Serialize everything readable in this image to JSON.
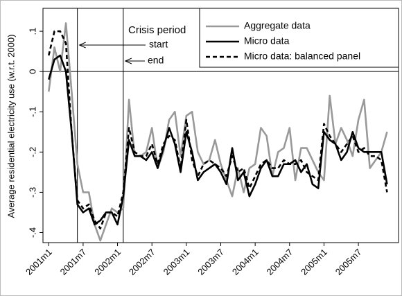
{
  "chart_data": {
    "type": "line",
    "y_label": "Average residential electricity use (w.r.t. 2000)",
    "annotations": {
      "crisis": "Crisis period",
      "start": "start",
      "end": "end"
    },
    "vlines": [
      5,
      13
    ],
    "yline": 0,
    "x": [
      0,
      1,
      2,
      3,
      4,
      5,
      6,
      7,
      8,
      9,
      10,
      11,
      12,
      13,
      14,
      15,
      16,
      17,
      18,
      19,
      20,
      21,
      22,
      23,
      24,
      25,
      26,
      27,
      28,
      29,
      30,
      31,
      32,
      33,
      34,
      35,
      36,
      37,
      38,
      39,
      40,
      41,
      42,
      43,
      44,
      45,
      46,
      47,
      48,
      49,
      50,
      51,
      52,
      53,
      54,
      55,
      56,
      57,
      58,
      59
    ],
    "xlim": [
      -1,
      61
    ],
    "xticks": [
      {
        "value": 0,
        "label": "2001m1"
      },
      {
        "value": 6,
        "label": "2001m7"
      },
      {
        "value": 12,
        "label": "2002m1"
      },
      {
        "value": 18,
        "label": "2002m7"
      },
      {
        "value": 24,
        "label": "2003m1"
      },
      {
        "value": 30,
        "label": "2003m7"
      },
      {
        "value": 36,
        "label": "2004m1"
      },
      {
        "value": 42,
        "label": "2004m7"
      },
      {
        "value": 48,
        "label": "2005m1"
      },
      {
        "value": 54,
        "label": "2005m7"
      }
    ],
    "ylim": [
      -0.425,
      0.157
    ],
    "yticks": [
      {
        "value": -0.4,
        "label": "-.4"
      },
      {
        "value": -0.3,
        "label": "-.3"
      },
      {
        "value": -0.2,
        "label": "-.2"
      },
      {
        "value": -0.1,
        "label": "-.1"
      },
      0,
      {
        "value": 0.1,
        "label": ".1"
      }
    ],
    "legend": "top-right",
    "series": [
      {
        "name": "Aggregate data",
        "color": "#999999",
        "dash": "none",
        "values": [
          -0.05,
          0.06,
          0.0,
          0.12,
          -0.05,
          -0.23,
          -0.3,
          -0.3,
          -0.38,
          -0.42,
          -0.38,
          -0.34,
          -0.35,
          -0.34,
          -0.07,
          -0.21,
          -0.21,
          -0.2,
          -0.14,
          -0.24,
          -0.2,
          -0.12,
          -0.1,
          -0.21,
          -0.11,
          -0.1,
          -0.2,
          -0.23,
          -0.22,
          -0.17,
          -0.23,
          -0.27,
          -0.31,
          -0.24,
          -0.3,
          -0.24,
          -0.23,
          -0.14,
          -0.16,
          -0.26,
          -0.2,
          -0.19,
          -0.14,
          -0.27,
          -0.19,
          -0.19,
          -0.22,
          -0.25,
          -0.27,
          -0.06,
          -0.18,
          -0.14,
          -0.17,
          -0.21,
          -0.12,
          -0.07,
          -0.24,
          -0.22,
          -0.2,
          -0.15
        ]
      },
      {
        "name": "Micro data",
        "color": "#000000",
        "dash": "none",
        "values": [
          -0.02,
          0.03,
          0.04,
          0.0,
          -0.15,
          -0.33,
          -0.35,
          -0.34,
          -0.38,
          -0.37,
          -0.35,
          -0.35,
          -0.38,
          -0.31,
          -0.17,
          -0.21,
          -0.21,
          -0.22,
          -0.2,
          -0.24,
          -0.19,
          -0.14,
          -0.18,
          -0.25,
          -0.15,
          -0.2,
          -0.27,
          -0.25,
          -0.24,
          -0.23,
          -0.25,
          -0.28,
          -0.19,
          -0.27,
          -0.25,
          -0.31,
          -0.28,
          -0.24,
          -0.22,
          -0.26,
          -0.26,
          -0.23,
          -0.23,
          -0.22,
          -0.25,
          -0.23,
          -0.28,
          -0.29,
          -0.15,
          -0.17,
          -0.18,
          -0.22,
          -0.2,
          -0.15,
          -0.19,
          -0.2,
          -0.2,
          -0.2,
          -0.2,
          -0.28
        ]
      },
      {
        "name": "Micro data: balanced panel",
        "color": "#000000",
        "dash": "6,4",
        "values": [
          0.04,
          0.1,
          0.1,
          0.07,
          -0.15,
          -0.32,
          -0.34,
          -0.33,
          -0.37,
          -0.39,
          -0.35,
          -0.35,
          -0.36,
          -0.3,
          -0.14,
          -0.2,
          -0.21,
          -0.21,
          -0.18,
          -0.23,
          -0.18,
          -0.16,
          -0.17,
          -0.24,
          -0.12,
          -0.22,
          -0.26,
          -0.23,
          -0.22,
          -0.23,
          -0.24,
          -0.26,
          -0.21,
          -0.25,
          -0.24,
          -0.29,
          -0.26,
          -0.23,
          -0.22,
          -0.24,
          -0.24,
          -0.22,
          -0.23,
          -0.23,
          -0.22,
          -0.25,
          -0.26,
          -0.27,
          -0.13,
          -0.16,
          -0.18,
          -0.2,
          -0.18,
          -0.16,
          -0.2,
          -0.19,
          -0.21,
          -0.21,
          -0.22,
          -0.3
        ]
      }
    ]
  }
}
